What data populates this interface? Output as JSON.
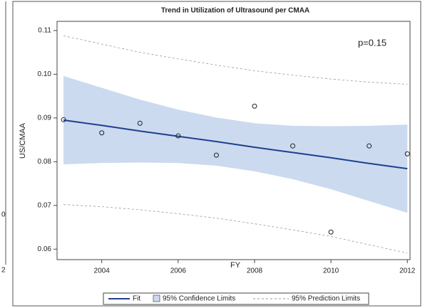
{
  "chart_data": {
    "type": "regression",
    "title": "Trend in Utilization of Ultrasound per CMAA",
    "annotation": "p=0.15",
    "x_label": "FY",
    "y_label": "US/CMAA",
    "x": [
      2003,
      2004,
      2005,
      2006,
      2007,
      2008,
      2009,
      2010,
      2011,
      2012
    ],
    "values": [
      0.0896,
      0.0866,
      0.0888,
      0.0859,
      0.0815,
      0.0927,
      0.0836,
      0.0639,
      0.0836,
      0.0818
    ],
    "series": [
      {
        "name": "Fit",
        "color": "#1f3f8f",
        "values": [
          0.0895,
          0.0883,
          0.087,
          0.0858,
          0.0846,
          0.0833,
          0.0821,
          0.0809,
          0.0796,
          0.0784
        ]
      },
      {
        "name": "95% Confidence Limits",
        "color": "#cbdaef",
        "upper": [
          0.0996,
          0.0969,
          0.0942,
          0.0919,
          0.0901,
          0.0888,
          0.0882,
          0.0881,
          0.0882,
          0.0885
        ],
        "lower": [
          0.0794,
          0.0797,
          0.0798,
          0.0797,
          0.0791,
          0.0778,
          0.076,
          0.0737,
          0.071,
          0.0683
        ]
      },
      {
        "name": "95% Prediction Limits",
        "color": "#999999",
        "upper": [
          0.1088,
          0.1069,
          0.105,
          0.1035,
          0.1021,
          0.1008,
          0.0998,
          0.0989,
          0.0982,
          0.0977
        ],
        "lower": [
          0.0702,
          0.0697,
          0.069,
          0.0681,
          0.0671,
          0.0658,
          0.0644,
          0.0629,
          0.061,
          0.0591
        ]
      }
    ],
    "xlim": [
      2002.83,
      2012.07
    ],
    "xticks": [
      2004,
      2006,
      2008,
      2010,
      2012
    ],
    "ylim": [
      0.0576,
      0.1121
    ],
    "yticks": [
      0.06,
      0.07,
      0.08,
      0.09,
      {
        "value": 0.1,
        "label": "0.10"
      },
      0.11
    ],
    "legend": "bottom"
  },
  "neighbor_fragments": [
    "0",
    "2"
  ]
}
